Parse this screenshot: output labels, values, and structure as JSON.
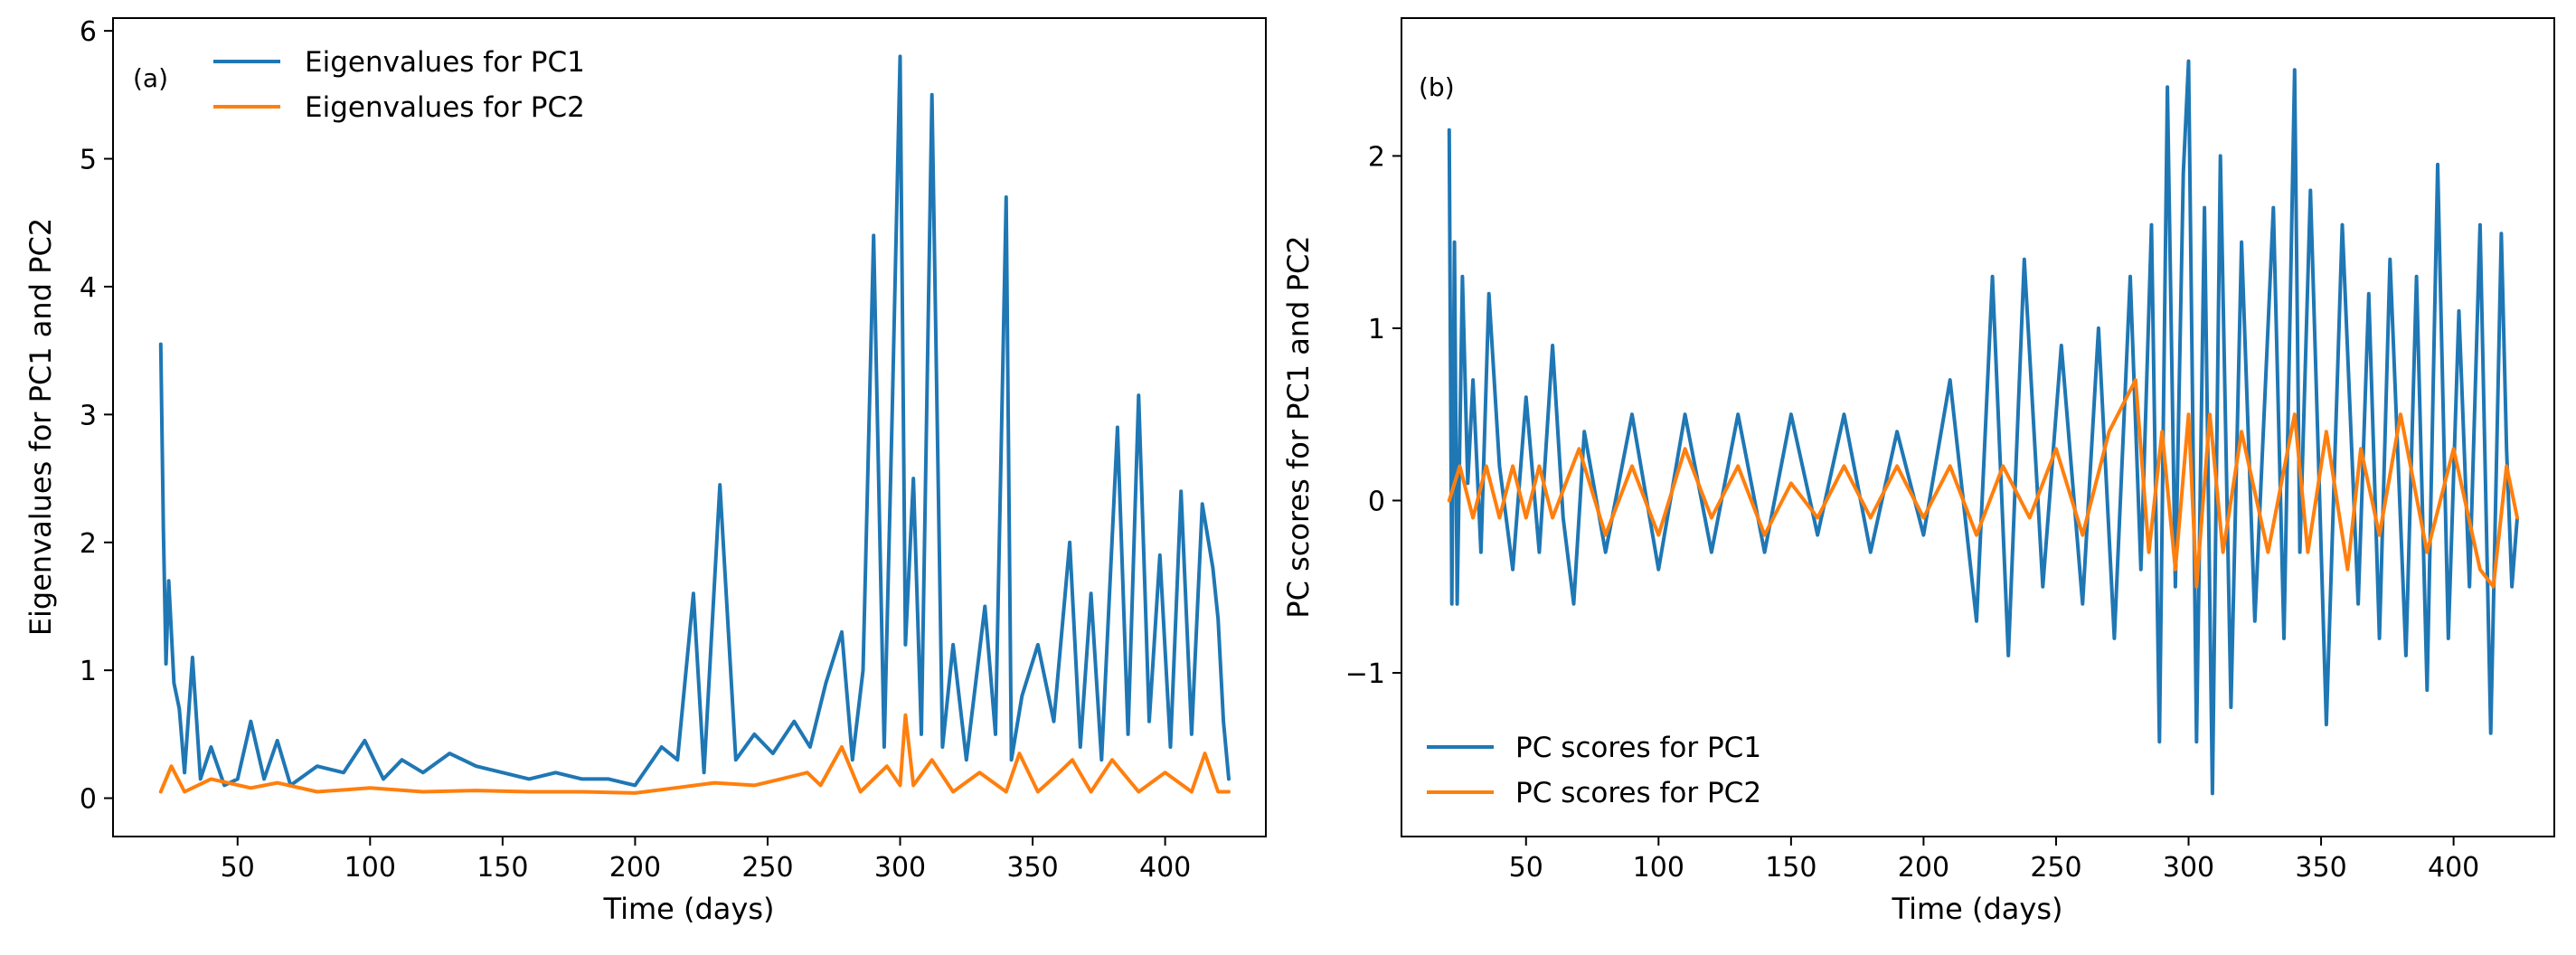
{
  "colors": {
    "pc1": "#1f77b4",
    "pc2": "#ff7f0e"
  },
  "chart_data": [
    {
      "panel_label": "(a)",
      "type": "line",
      "xlabel": "Time (days)",
      "ylabel": "Eigenvalues for PC1 and PC2",
      "xlim": [
        3,
        438
      ],
      "ylim": [
        -0.3,
        6.1
      ],
      "xticks": [
        50,
        100,
        150,
        200,
        250,
        300,
        350,
        400
      ],
      "yticks": [
        0,
        1,
        2,
        3,
        4,
        5,
        6
      ],
      "legend_location": "upper-left",
      "series": [
        {
          "name": "Eigenvalues for PC1",
          "color": "#1f77b4",
          "x": [
            21,
            22,
            23,
            24,
            26,
            28,
            30,
            33,
            36,
            40,
            45,
            50,
            55,
            60,
            65,
            70,
            80,
            90,
            98,
            105,
            112,
            120,
            130,
            140,
            150,
            160,
            170,
            180,
            190,
            200,
            210,
            216,
            222,
            226,
            232,
            238,
            245,
            252,
            260,
            266,
            272,
            278,
            282,
            286,
            290,
            294,
            297,
            300,
            302,
            305,
            308,
            312,
            316,
            320,
            325,
            332,
            336,
            340,
            342,
            346,
            352,
            358,
            364,
            368,
            372,
            376,
            382,
            386,
            390,
            394,
            398,
            402,
            406,
            410,
            414,
            418,
            420,
            422,
            424
          ],
          "y": [
            3.55,
            2.1,
            1.05,
            1.7,
            0.9,
            0.7,
            0.2,
            1.1,
            0.15,
            0.4,
            0.1,
            0.15,
            0.6,
            0.15,
            0.45,
            0.1,
            0.25,
            0.2,
            0.45,
            0.15,
            0.3,
            0.2,
            0.35,
            0.25,
            0.2,
            0.15,
            0.2,
            0.15,
            0.15,
            0.1,
            0.4,
            0.3,
            1.6,
            0.2,
            2.45,
            0.3,
            0.5,
            0.35,
            0.6,
            0.4,
            0.9,
            1.3,
            0.3,
            1.0,
            4.4,
            0.4,
            3.0,
            5.8,
            1.2,
            2.5,
            0.5,
            5.5,
            0.4,
            1.2,
            0.3,
            1.5,
            0.5,
            4.7,
            0.3,
            0.8,
            1.2,
            0.6,
            2.0,
            0.4,
            1.6,
            0.3,
            2.9,
            0.5,
            3.15,
            0.6,
            1.9,
            0.4,
            2.4,
            0.5,
            2.3,
            1.8,
            1.4,
            0.6,
            0.15
          ]
        },
        {
          "name": "Eigenvalues for PC2",
          "color": "#ff7f0e",
          "x": [
            21,
            25,
            30,
            40,
            55,
            65,
            80,
            100,
            120,
            140,
            160,
            180,
            200,
            215,
            230,
            245,
            255,
            265,
            270,
            278,
            285,
            295,
            300,
            302,
            305,
            312,
            320,
            330,
            340,
            345,
            352,
            360,
            365,
            372,
            380,
            390,
            400,
            410,
            415,
            420,
            424
          ],
          "y": [
            0.05,
            0.25,
            0.05,
            0.15,
            0.08,
            0.12,
            0.05,
            0.08,
            0.05,
            0.06,
            0.05,
            0.05,
            0.04,
            0.08,
            0.12,
            0.1,
            0.15,
            0.2,
            0.1,
            0.4,
            0.05,
            0.25,
            0.1,
            0.65,
            0.1,
            0.3,
            0.05,
            0.2,
            0.05,
            0.35,
            0.05,
            0.2,
            0.3,
            0.05,
            0.3,
            0.05,
            0.2,
            0.05,
            0.35,
            0.05,
            0.05
          ]
        }
      ]
    },
    {
      "panel_label": "(b)",
      "type": "line",
      "xlabel": "Time (days)",
      "ylabel": "PC scores for PC1 and PC2",
      "xlim": [
        3,
        438
      ],
      "ylim": [
        -1.95,
        2.8
      ],
      "xticks": [
        50,
        100,
        150,
        200,
        250,
        300,
        350,
        400
      ],
      "yticks": [
        -1,
        0,
        1,
        2
      ],
      "legend_location": "lower-left",
      "series": [
        {
          "name": "PC scores for PC1",
          "color": "#1f77b4",
          "x": [
            21,
            22,
            23,
            24,
            26,
            28,
            30,
            33,
            36,
            40,
            45,
            50,
            55,
            60,
            64,
            68,
            72,
            80,
            90,
            100,
            110,
            120,
            130,
            140,
            150,
            160,
            170,
            180,
            190,
            200,
            210,
            220,
            226,
            232,
            238,
            245,
            252,
            260,
            266,
            272,
            278,
            282,
            286,
            289,
            292,
            295,
            298,
            300,
            303,
            306,
            309,
            312,
            316,
            320,
            325,
            332,
            336,
            340,
            342,
            346,
            352,
            358,
            364,
            368,
            372,
            376,
            382,
            386,
            390,
            394,
            398,
            402,
            406,
            410,
            414,
            418,
            420,
            422,
            424
          ],
          "y": [
            2.15,
            -0.6,
            1.5,
            -0.6,
            1.3,
            0.1,
            0.7,
            -0.3,
            1.2,
            0.2,
            -0.4,
            0.6,
            -0.3,
            0.9,
            -0.1,
            -0.6,
            0.4,
            -0.3,
            0.5,
            -0.4,
            0.5,
            -0.3,
            0.5,
            -0.3,
            0.5,
            -0.2,
            0.5,
            -0.3,
            0.4,
            -0.2,
            0.7,
            -0.7,
            1.3,
            -0.9,
            1.4,
            -0.5,
            0.9,
            -0.6,
            1.0,
            -0.8,
            1.3,
            -0.4,
            1.6,
            -1.4,
            2.4,
            -0.5,
            1.9,
            2.55,
            -1.4,
            1.7,
            -1.7,
            2.0,
            -1.2,
            1.5,
            -0.7,
            1.7,
            -0.8,
            2.5,
            -0.3,
            1.8,
            -1.3,
            1.6,
            -0.6,
            1.2,
            -0.8,
            1.4,
            -0.9,
            1.3,
            -1.1,
            1.95,
            -0.8,
            1.1,
            -0.5,
            1.6,
            -1.35,
            1.55,
            0.3,
            -0.5,
            -0.1
          ]
        },
        {
          "name": "PC scores for PC2",
          "color": "#ff7f0e",
          "x": [
            21,
            25,
            30,
            35,
            40,
            45,
            50,
            55,
            60,
            70,
            80,
            90,
            100,
            110,
            120,
            130,
            140,
            150,
            160,
            170,
            180,
            190,
            200,
            210,
            220,
            230,
            240,
            250,
            260,
            270,
            280,
            285,
            290,
            295,
            300,
            303,
            308,
            313,
            320,
            330,
            340,
            345,
            352,
            360,
            365,
            372,
            380,
            390,
            400,
            410,
            415,
            420,
            424
          ],
          "y": [
            0,
            0.2,
            -0.1,
            0.2,
            -0.1,
            0.2,
            -0.1,
            0.2,
            -0.1,
            0.3,
            -0.2,
            0.2,
            -0.2,
            0.3,
            -0.1,
            0.2,
            -0.2,
            0.1,
            -0.1,
            0.2,
            -0.1,
            0.2,
            -0.1,
            0.2,
            -0.2,
            0.2,
            -0.1,
            0.3,
            -0.2,
            0.4,
            0.7,
            -0.3,
            0.4,
            -0.4,
            0.5,
            -0.5,
            0.5,
            -0.3,
            0.4,
            -0.3,
            0.5,
            -0.3,
            0.4,
            -0.4,
            0.3,
            -0.2,
            0.5,
            -0.3,
            0.3,
            -0.4,
            -0.5,
            0.2,
            -0.1
          ]
        }
      ]
    }
  ]
}
